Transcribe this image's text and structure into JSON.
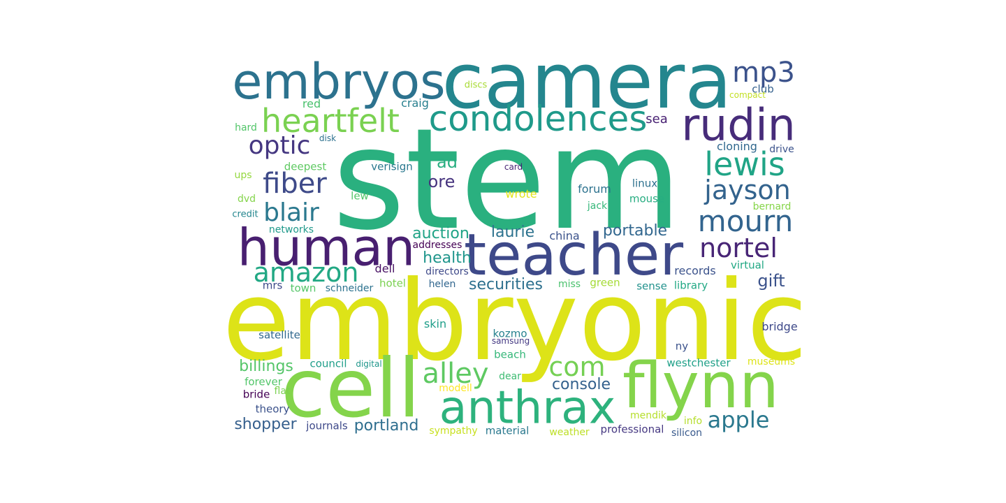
{
  "words": [
    {
      "text": "stem",
      "color": "#2ab07f"
    },
    {
      "text": "embryonic",
      "color": "#dde318"
    },
    {
      "text": "camera",
      "color": "#24868e"
    },
    {
      "text": "cell",
      "color": "#84d44b"
    },
    {
      "text": "teacher",
      "color": "#3e4989"
    },
    {
      "text": "human",
      "color": "#481f70"
    },
    {
      "text": "flynn",
      "color": "#84d44b"
    },
    {
      "text": "anthrax",
      "color": "#2db27d"
    },
    {
      "text": "embryos",
      "color": "#2c728e"
    },
    {
      "text": "rudin",
      "color": "#472c7a"
    },
    {
      "text": "condolences",
      "color": "#1f9a8a"
    },
    {
      "text": "heartfelt",
      "color": "#7ad151"
    },
    {
      "text": "mp3",
      "color": "#3b528b"
    },
    {
      "text": "lewis",
      "color": "#20a486"
    },
    {
      "text": "jayson",
      "color": "#33638d"
    },
    {
      "text": "mourn",
      "color": "#32648e"
    },
    {
      "text": "fiber",
      "color": "#3e4a89"
    },
    {
      "text": "optic",
      "color": "#453781"
    },
    {
      "text": "blair",
      "color": "#2a788e"
    },
    {
      "text": "amazon",
      "color": "#22a884"
    },
    {
      "text": "nortel",
      "color": "#482576"
    },
    {
      "text": "alley",
      "color": "#5ec962"
    },
    {
      "text": "com",
      "color": "#75d054"
    },
    {
      "text": "apple",
      "color": "#2a788e"
    },
    {
      "text": "auction",
      "color": "#20a386"
    },
    {
      "text": "laurie",
      "color": "#2c728e"
    },
    {
      "text": "portable",
      "color": "#31668e"
    },
    {
      "text": "securities",
      "color": "#2d708e"
    },
    {
      "text": "health",
      "color": "#1f958b"
    },
    {
      "text": "gift",
      "color": "#3b528b"
    },
    {
      "text": "ad",
      "color": "#28ae80"
    },
    {
      "text": "ore",
      "color": "#46337e"
    },
    {
      "text": "shopper",
      "color": "#355f8d"
    },
    {
      "text": "portland",
      "color": "#2e6e8e"
    },
    {
      "text": "console",
      "color": "#34618d"
    },
    {
      "text": "billings",
      "color": "#54c568"
    },
    {
      "text": "sea",
      "color": "#482173"
    },
    {
      "text": "craig",
      "color": "#277f8e"
    },
    {
      "text": "red",
      "color": "#4ac16d"
    },
    {
      "text": "discs",
      "color": "#a8db34"
    },
    {
      "text": "club",
      "color": "#34608d"
    },
    {
      "text": "compact",
      "color": "#c2df23"
    },
    {
      "text": "hard",
      "color": "#52c569"
    },
    {
      "text": "disk",
      "color": "#2d718e"
    },
    {
      "text": "cloning",
      "color": "#31688e"
    },
    {
      "text": "drive",
      "color": "#3b528b"
    },
    {
      "text": "deepest",
      "color": "#5ec962"
    },
    {
      "text": "verisign",
      "color": "#2a788e"
    },
    {
      "text": "card",
      "color": "#482475"
    },
    {
      "text": "ups",
      "color": "#95d840"
    },
    {
      "text": "dvd",
      "color": "#84d44b"
    },
    {
      "text": "lew",
      "color": "#52c569"
    },
    {
      "text": "wrote",
      "color": "#e2e418"
    },
    {
      "text": "forum",
      "color": "#2c728e"
    },
    {
      "text": "linux",
      "color": "#2d708e"
    },
    {
      "text": "mouse",
      "color": "#27ad81"
    },
    {
      "text": "jack",
      "color": "#35b779"
    },
    {
      "text": "bernard",
      "color": "#86d549"
    },
    {
      "text": "credit",
      "color": "#24868e"
    },
    {
      "text": "networks",
      "color": "#1f998a"
    },
    {
      "text": "addresses",
      "color": "#440154"
    },
    {
      "text": "china",
      "color": "#3b528b"
    },
    {
      "text": "dell",
      "color": "#471063"
    },
    {
      "text": "directors",
      "color": "#3e4989"
    },
    {
      "text": "records",
      "color": "#3b528b"
    },
    {
      "text": "virtual",
      "color": "#22a884"
    },
    {
      "text": "mrs",
      "color": "#3e4989"
    },
    {
      "text": "town",
      "color": "#54c568"
    },
    {
      "text": "schneider",
      "color": "#2c728e"
    },
    {
      "text": "hotel",
      "color": "#7ad151"
    },
    {
      "text": "helen",
      "color": "#31668e"
    },
    {
      "text": "miss",
      "color": "#4ac16d"
    },
    {
      "text": "green",
      "color": "#a5db36"
    },
    {
      "text": "sense",
      "color": "#21918c"
    },
    {
      "text": "library",
      "color": "#22a884"
    },
    {
      "text": "skin",
      "color": "#1f9e89"
    },
    {
      "text": "kozmo",
      "color": "#26828e"
    },
    {
      "text": "samsung",
      "color": "#443983"
    },
    {
      "text": "bridge",
      "color": "#3e4989"
    },
    {
      "text": "satellite",
      "color": "#31688e"
    },
    {
      "text": "ny",
      "color": "#3b528b"
    },
    {
      "text": "council",
      "color": "#1f9e89"
    },
    {
      "text": "digital",
      "color": "#1f968b"
    },
    {
      "text": "beach",
      "color": "#35b779"
    },
    {
      "text": "westchester",
      "color": "#1fa088"
    },
    {
      "text": "museums",
      "color": "#dde318"
    },
    {
      "text": "forever",
      "color": "#52c569"
    },
    {
      "text": "modell",
      "color": "#fde725"
    },
    {
      "text": "dear",
      "color": "#3fbc73"
    },
    {
      "text": "bride",
      "color": "#440154"
    },
    {
      "text": "flat",
      "color": "#7ad151"
    },
    {
      "text": "theory",
      "color": "#3b528b"
    },
    {
      "text": "journals",
      "color": "#3e4989"
    },
    {
      "text": "mendik",
      "color": "#b5de2b"
    },
    {
      "text": "info",
      "color": "#b5de2b"
    },
    {
      "text": "sympathy",
      "color": "#c8e020"
    },
    {
      "text": "material",
      "color": "#2a788e"
    },
    {
      "text": "weather",
      "color": "#bddf26"
    },
    {
      "text": "professional",
      "color": "#453781"
    },
    {
      "text": "silicon",
      "color": "#38598c"
    }
  ]
}
